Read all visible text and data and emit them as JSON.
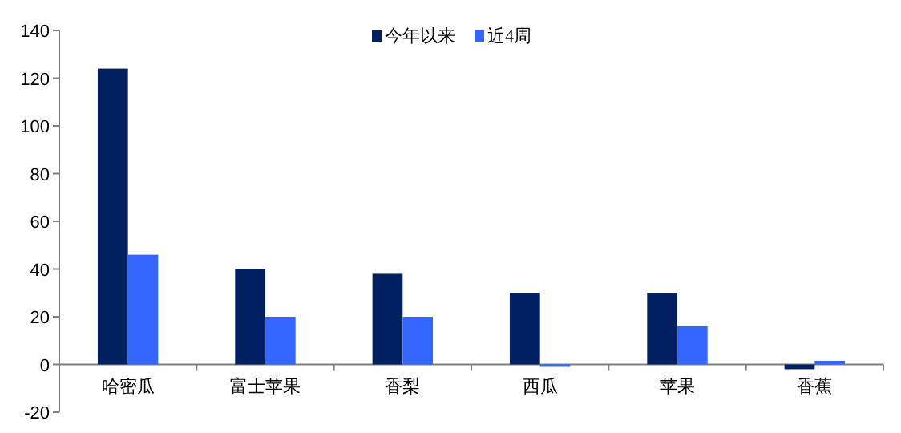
{
  "chart_data": {
    "type": "bar",
    "categories": [
      "哈密瓜",
      "富士苹果",
      "香梨",
      "西瓜",
      "苹果",
      "香蕉"
    ],
    "series": [
      {
        "name": "今年以来",
        "color": "#002060",
        "values": [
          124,
          40,
          38,
          30,
          30,
          -2
        ]
      },
      {
        "name": "近4周",
        "color": "#3366ff",
        "values": [
          46,
          20,
          20,
          -1,
          16,
          1.5
        ]
      }
    ],
    "ylim": [
      -20,
      140
    ],
    "yticks": [
      -20,
      0,
      20,
      40,
      60,
      80,
      100,
      120,
      140
    ],
    "legend": "top",
    "grid": false
  }
}
